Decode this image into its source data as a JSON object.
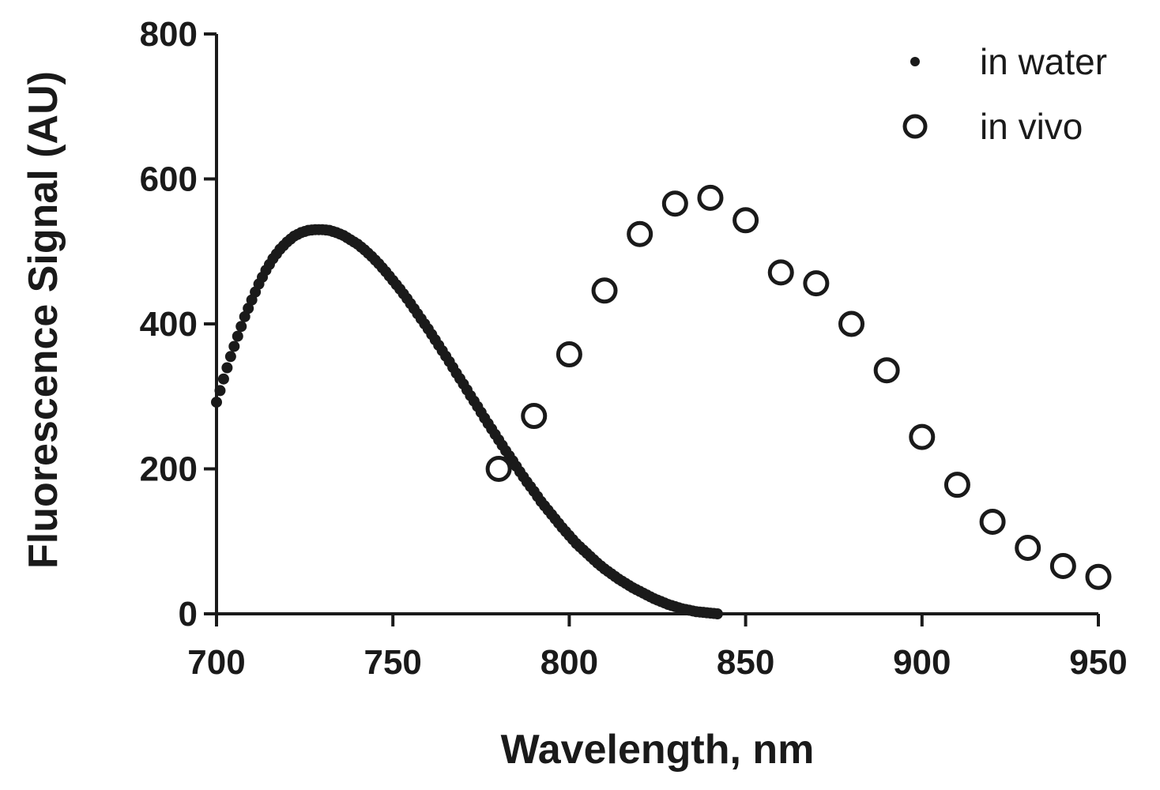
{
  "chart_data": {
    "type": "scatter",
    "title": "",
    "xlabel": "Wavelength, nm",
    "ylabel": "Fluorescence Signal (AU)",
    "xlim": [
      700,
      950
    ],
    "ylim": [
      0,
      800
    ],
    "xticks": [
      700,
      750,
      800,
      850,
      900,
      950
    ],
    "yticks": [
      0,
      200,
      400,
      600,
      800
    ],
    "legend_position": "top-right",
    "series": [
      {
        "name": "in water",
        "marker": "filled-dot",
        "x": [
          700,
          702,
          704,
          706,
          708,
          710,
          712,
          714,
          716,
          718,
          720,
          722,
          724,
          726,
          728,
          730,
          732,
          734,
          736,
          738,
          740,
          742,
          744,
          746,
          748,
          750,
          752,
          754,
          756,
          758,
          760,
          762,
          764,
          766,
          768,
          770,
          772,
          774,
          776,
          778,
          780,
          782,
          784,
          786,
          788,
          790,
          792,
          794,
          796,
          798,
          800,
          802,
          804,
          806,
          808,
          810,
          812,
          814,
          816,
          818,
          820,
          822,
          824,
          826,
          828,
          830,
          832,
          834,
          836,
          838,
          840,
          842
        ],
        "y": [
          292,
          324,
          355,
          383,
          410,
          433,
          455,
          474,
          490,
          503,
          513,
          521,
          526,
          529,
          530,
          530,
          529,
          526,
          522,
          516,
          510,
          502,
          493,
          483,
          472,
          460,
          448,
          435,
          421,
          407,
          393,
          378,
          363,
          348,
          332,
          317,
          301,
          286,
          270,
          255,
          240,
          225,
          211,
          196,
          182,
          169,
          155,
          143,
          131,
          119,
          108,
          97,
          88,
          79,
          70,
          62,
          55,
          48,
          42,
          36,
          31,
          26,
          21,
          17,
          13,
          10,
          7,
          5,
          3,
          2,
          1,
          0
        ]
      },
      {
        "name": "in vivo",
        "marker": "open-circle",
        "x": [
          780,
          790,
          800,
          810,
          820,
          830,
          840,
          850,
          860,
          870,
          880,
          890,
          900,
          910,
          920,
          930,
          940,
          950
        ],
        "y": [
          200,
          273,
          358,
          446,
          524,
          566,
          574,
          543,
          471,
          456,
          400,
          336,
          244,
          178,
          127,
          91,
          66,
          51
        ]
      }
    ]
  }
}
